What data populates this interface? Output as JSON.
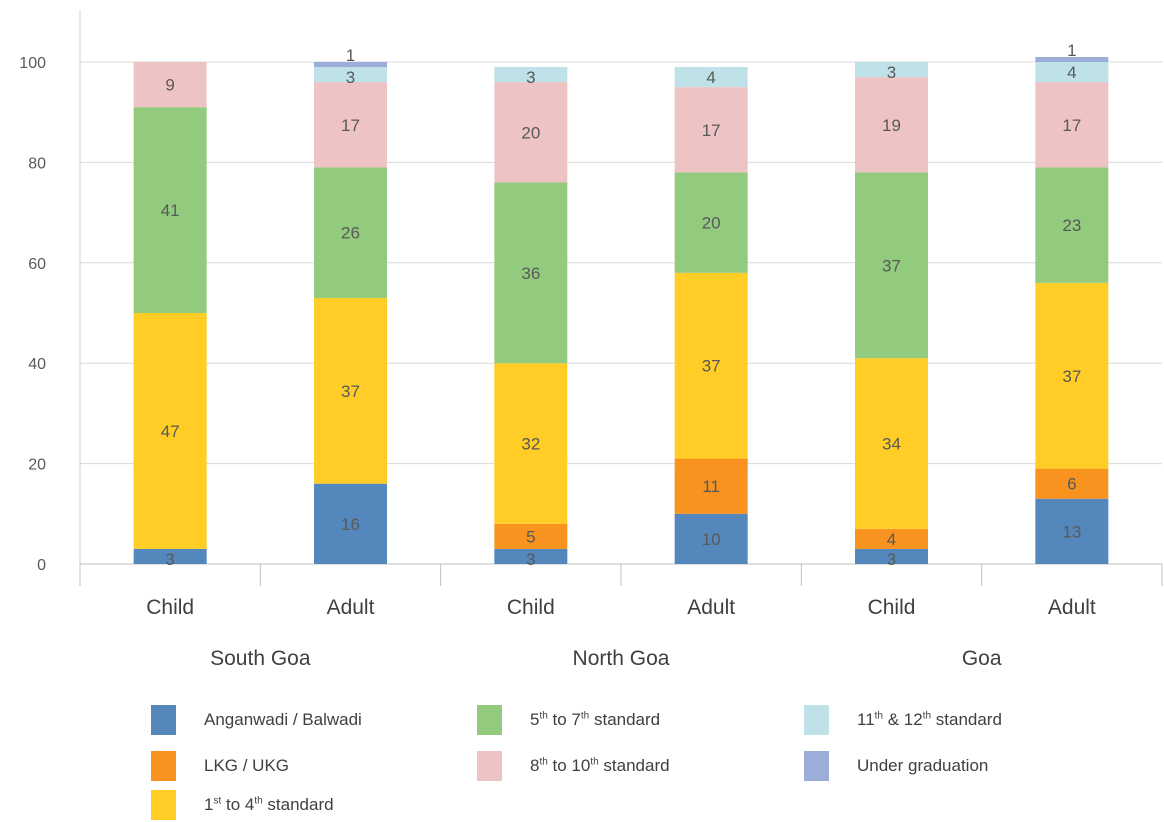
{
  "chart_data": {
    "type": "bar",
    "stacked": true,
    "y_ticks": [
      0,
      20,
      40,
      60,
      80,
      100
    ],
    "ylim": [
      0,
      100
    ],
    "grid": true,
    "legend_position": "bottom",
    "groups": [
      {
        "label": "South Goa",
        "bars": [
          "Child",
          "Adult"
        ]
      },
      {
        "label": "North Goa",
        "bars": [
          "Child",
          "Adult"
        ]
      },
      {
        "label": "Goa",
        "bars": [
          "Child",
          "Adult"
        ]
      }
    ],
    "categories": [
      "Child",
      "Adult",
      "Child",
      "Adult",
      "Child",
      "Adult"
    ],
    "series": [
      {
        "name": "Anganwadi / Balwadi",
        "color": "#5487BB",
        "values": [
          3,
          16,
          3,
          10,
          3,
          13
        ]
      },
      {
        "name": "LKG / UKG",
        "color": "#F7931E",
        "values": [
          0,
          0,
          5,
          11,
          4,
          6
        ]
      },
      {
        "name": "1st to 4th standard",
        "color": "#FFCD26",
        "values": [
          47,
          37,
          32,
          37,
          34,
          37
        ]
      },
      {
        "name": "5th to 7th standard",
        "color": "#92CB7D",
        "values": [
          41,
          26,
          36,
          20,
          37,
          23
        ]
      },
      {
        "name": "8th to 10th standard",
        "color": "#EEC3C4",
        "values": [
          9,
          17,
          20,
          17,
          19,
          17
        ]
      },
      {
        "name": "11th & 12th standard",
        "color": "#BFE1E8",
        "values": [
          0,
          3,
          3,
          4,
          3,
          4
        ]
      },
      {
        "name": "Under graduation",
        "color": "#9DADD9",
        "values": [
          0,
          1,
          0,
          0,
          0,
          1
        ]
      }
    ]
  },
  "legend": {
    "items": [
      {
        "pre": "Anganwadi / Balwadi",
        "sup1": "",
        "mid": "",
        "sup2": "",
        "post": ""
      },
      {
        "pre": "LKG / UKG",
        "sup1": "",
        "mid": "",
        "sup2": "",
        "post": ""
      },
      {
        "pre": "1",
        "sup1": "st",
        "mid": " to 4",
        "sup2": "th",
        "post": " standard"
      },
      {
        "pre": "5",
        "sup1": "th",
        "mid": " to 7",
        "sup2": "th",
        "post": " standard"
      },
      {
        "pre": "8",
        "sup1": "th",
        "mid": " to 10",
        "sup2": "th",
        "post": " standard"
      },
      {
        "pre": "11",
        "sup1": "th",
        "mid": " & 12",
        "sup2": "th",
        "post": " standard"
      },
      {
        "pre": "Under graduation",
        "sup1": "",
        "mid": "",
        "sup2": "",
        "post": ""
      }
    ]
  }
}
